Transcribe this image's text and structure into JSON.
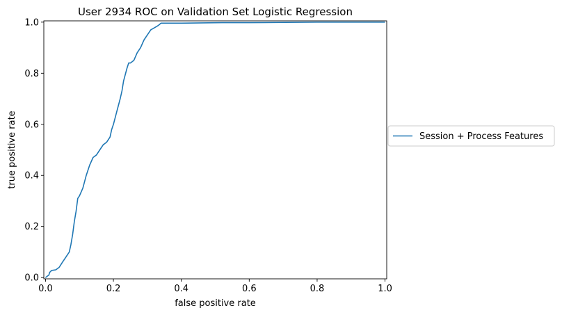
{
  "chart_data": {
    "type": "line",
    "title": "User 2934 ROC on Validation Set Logistic Regression",
    "xlabel": "false positive rate",
    "ylabel": "true positive rate",
    "xlim": [
      -0.005,
      1.005
    ],
    "ylim": [
      -0.005,
      1.005
    ],
    "xticks": [
      0.0,
      0.2,
      0.4,
      0.6,
      0.8,
      1.0
    ],
    "xtick_labels": [
      "0.0",
      "0.2",
      "0.4",
      "0.6",
      "0.8",
      "1.0"
    ],
    "yticks": [
      0.0,
      0.2,
      0.4,
      0.6,
      0.8,
      1.0
    ],
    "ytick_labels": [
      "0.0",
      "0.2",
      "0.4",
      "0.6",
      "0.8",
      "1.0"
    ],
    "grid": false,
    "legend_position": "outside-right",
    "series": [
      {
        "name": "Session + Process Features",
        "color": "#1f77b4",
        "x": [
          0.0,
          0.005,
          0.01,
          0.012,
          0.018,
          0.03,
          0.04,
          0.05,
          0.06,
          0.07,
          0.075,
          0.08,
          0.085,
          0.09,
          0.095,
          0.1,
          0.11,
          0.12,
          0.13,
          0.14,
          0.15,
          0.16,
          0.17,
          0.18,
          0.19,
          0.195,
          0.2,
          0.21,
          0.22,
          0.225,
          0.23,
          0.24,
          0.245,
          0.25,
          0.26,
          0.27,
          0.28,
          0.29,
          0.3,
          0.31,
          0.33,
          0.335,
          0.34,
          0.35,
          0.4,
          0.52,
          0.6,
          0.8,
          1.0
        ],
        "y": [
          0.0,
          0.005,
          0.01,
          0.02,
          0.028,
          0.03,
          0.04,
          0.06,
          0.08,
          0.1,
          0.13,
          0.17,
          0.22,
          0.26,
          0.31,
          0.32,
          0.35,
          0.4,
          0.44,
          0.47,
          0.48,
          0.5,
          0.52,
          0.53,
          0.55,
          0.58,
          0.6,
          0.65,
          0.7,
          0.73,
          0.77,
          0.82,
          0.84,
          0.84,
          0.85,
          0.88,
          0.9,
          0.93,
          0.95,
          0.97,
          0.985,
          0.99,
          0.996,
          0.996,
          0.996,
          0.998,
          0.998,
          1.0,
          1.0
        ]
      }
    ]
  }
}
